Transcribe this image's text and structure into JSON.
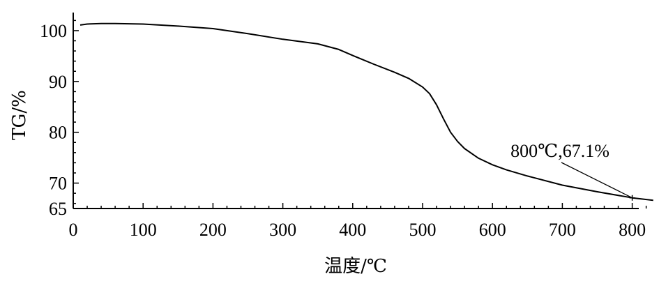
{
  "chart_data": {
    "type": "line",
    "xlabel": "温度/℃",
    "ylabel": "TG/%",
    "xlim": [
      0,
      835
    ],
    "ylim": [
      65,
      103
    ],
    "xticks": [
      0,
      100,
      200,
      300,
      400,
      500,
      600,
      700,
      800
    ],
    "yticks": [
      65,
      70,
      80,
      90,
      100
    ],
    "grid": false,
    "series": [
      {
        "color": "#000000",
        "points": [
          [
            10,
            101.1
          ],
          [
            20,
            101.3
          ],
          [
            40,
            101.4
          ],
          [
            60,
            101.4
          ],
          [
            80,
            101.35
          ],
          [
            100,
            101.3
          ],
          [
            150,
            100.9
          ],
          [
            200,
            100.4
          ],
          [
            250,
            99.4
          ],
          [
            300,
            98.3
          ],
          [
            350,
            97.4
          ],
          [
            380,
            96.3
          ],
          [
            400,
            95.1
          ],
          [
            430,
            93.4
          ],
          [
            460,
            91.8
          ],
          [
            480,
            90.6
          ],
          [
            500,
            88.9
          ],
          [
            510,
            87.6
          ],
          [
            520,
            85.4
          ],
          [
            530,
            82.6
          ],
          [
            540,
            80.0
          ],
          [
            550,
            78.2
          ],
          [
            560,
            76.8
          ],
          [
            580,
            74.9
          ],
          [
            600,
            73.6
          ],
          [
            620,
            72.6
          ],
          [
            650,
            71.4
          ],
          [
            700,
            69.6
          ],
          [
            750,
            68.3
          ],
          [
            800,
            67.1
          ],
          [
            830,
            66.6
          ]
        ]
      }
    ],
    "annotations": [
      {
        "text": "800℃,67.1%",
        "x": 800,
        "y": 67.1
      }
    ]
  }
}
